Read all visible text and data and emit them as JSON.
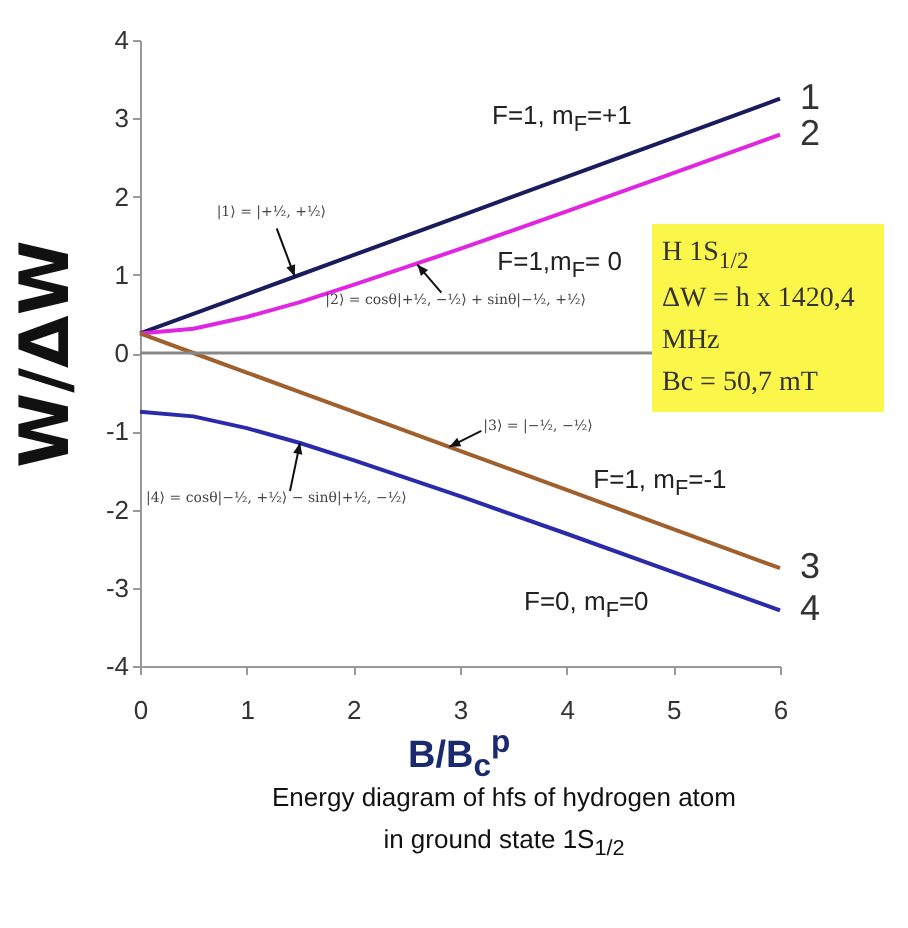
{
  "chart_data": {
    "type": "line",
    "title": "Energy diagram of hfs of hydrogen atom in ground state 1S$_{1/2}$",
    "xlabel": "B/B$_{c}$$^{p}$",
    "ylabel": "W/ΔW",
    "x": [
      0,
      0.5,
      1,
      1.5,
      2,
      3,
      4,
      5,
      6
    ],
    "series": [
      {
        "name": "1",
        "color": "#1c1c5c",
        "values": [
          0.25,
          0.5,
          0.75,
          1,
          1.25,
          1.75,
          2.25,
          2.75,
          3.25
        ]
      },
      {
        "name": "2",
        "color": "#e026e0",
        "values": [
          0.25,
          0.31,
          0.46,
          0.65,
          0.87,
          1.33,
          1.81,
          2.3,
          2.79
        ]
      },
      {
        "name": "3",
        "color": "#a0602e",
        "values": [
          0.25,
          0,
          -0.25,
          -0.5,
          -0.75,
          -1.25,
          -1.75,
          -2.25,
          -2.75
        ]
      },
      {
        "name": "4",
        "color": "#2a2aaa",
        "values": [
          -0.75,
          -0.81,
          -0.96,
          -1.15,
          -1.37,
          -1.83,
          -2.31,
          -2.8,
          -3.29
        ]
      }
    ],
    "xlim": [
      0,
      6
    ],
    "xticks": [
      0,
      1,
      2,
      3,
      4,
      5,
      6
    ],
    "ylim": [
      -4,
      4
    ],
    "yticks": [
      -4,
      -3,
      -2,
      -1,
      0,
      1,
      2,
      3,
      4
    ],
    "grid": false,
    "legend": false,
    "marker": "none",
    "line_style": "solid",
    "ref_lines": [
      {
        "axis": "y",
        "value": 0,
        "color": "#888888"
      }
    ],
    "annotations": [
      "F=1, m$_{F}$=+1",
      "F=1,m$_{F}$= 0",
      "F=1, m$_{F}$=-1",
      "F=0, m$_{F}$=0",
      {
        "text": "|1⟩ = |+½, +½⟩",
        "x": 1.45,
        "y": 0.98
      },
      {
        "text": "|2⟩ = cosθ|+½, −½⟩ + sinθ|−½, +½⟩",
        "x": 2.6,
        "y": 1.13
      },
      {
        "text": "|3⟩ = |−½, −½⟩",
        "x": 2.9,
        "y": -1.2
      },
      {
        "text": "|4⟩ = cosθ|−½, +½⟩ − sinθ|+½, −½⟩",
        "x": 1.5,
        "y": -1.15
      },
      "H 1S$_{1/2}$",
      "ΔW = h x 1420,4 MHz",
      "Bc = 50,7 mT"
    ]
  }
}
